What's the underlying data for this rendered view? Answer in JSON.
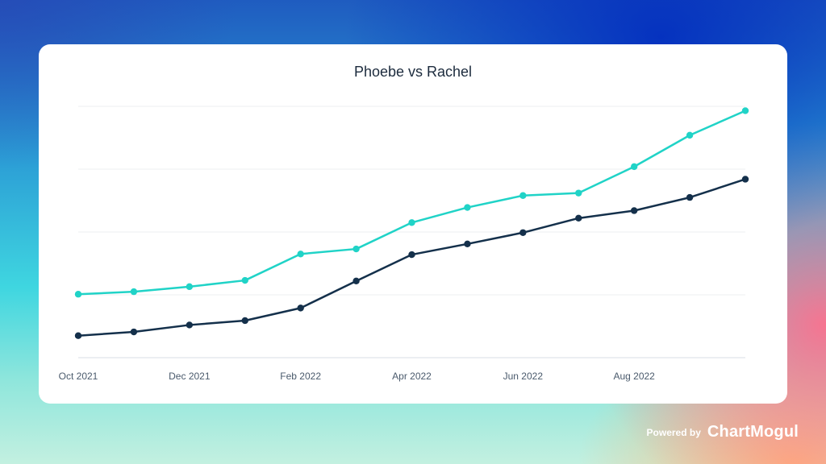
{
  "footer": {
    "powered_by": "Powered by",
    "brand": "ChartMogul"
  },
  "chart_data": {
    "type": "line",
    "title": "Phoebe vs Rachel",
    "xlabel": "",
    "ylabel": "",
    "x": [
      "2021-10",
      "2021-11",
      "2021-12",
      "2022-01",
      "2022-02",
      "2022-03",
      "2022-04",
      "2022-05",
      "2022-06",
      "2022-07",
      "2022-08",
      "2022-09",
      "2022-10"
    ],
    "x_tick_labels": [
      {
        "x": "2021-10",
        "label": "Oct 2021"
      },
      {
        "x": "2021-12",
        "label": "Dec 2021"
      },
      {
        "x": "2022-02",
        "label": "Feb 2022"
      },
      {
        "x": "2022-04",
        "label": "Apr 2022"
      },
      {
        "x": "2022-06",
        "label": "Jun 2022"
      },
      {
        "x": "2022-08",
        "label": "Aug 2022"
      }
    ],
    "ylim": [
      0,
      4
    ],
    "y_gridlines": [
      0,
      1,
      2,
      3,
      4
    ],
    "grid": true,
    "series": [
      {
        "color": "#20d3c7",
        "values": [
          1.01,
          1.05,
          1.13,
          1.23,
          1.65,
          1.73,
          2.15,
          2.39,
          2.58,
          2.62,
          3.04,
          3.54,
          3.93
        ]
      },
      {
        "color": "#14304b",
        "values": [
          0.35,
          0.41,
          0.52,
          0.59,
          0.79,
          1.22,
          1.64,
          1.81,
          1.99,
          2.22,
          2.34,
          2.55,
          2.84
        ]
      }
    ]
  }
}
